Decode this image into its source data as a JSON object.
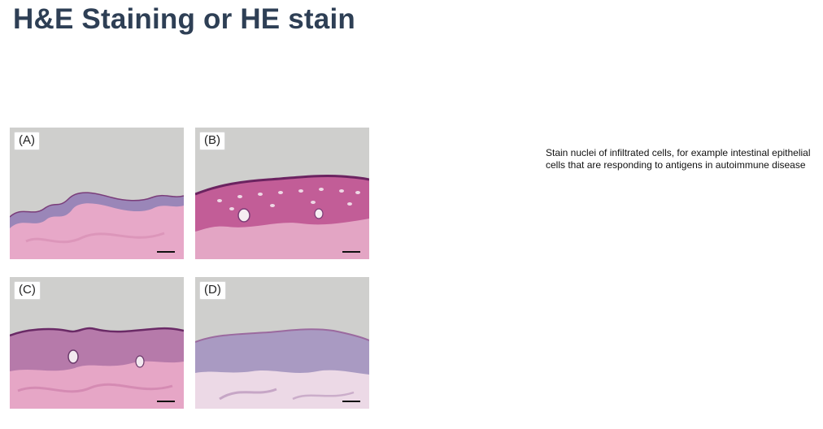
{
  "slide": {
    "title": "H&E Staining or HE stain",
    "caption": "Stain nuclei of infiltrated cells, for example intestinal epithelial cells that are responding to antigens in autoimmune disease"
  },
  "figure": {
    "panels": [
      {
        "id": "a",
        "label": "(A)"
      },
      {
        "id": "b",
        "label": "(B)"
      },
      {
        "id": "c",
        "label": "(C)"
      },
      {
        "id": "d",
        "label": "(D)"
      }
    ]
  }
}
